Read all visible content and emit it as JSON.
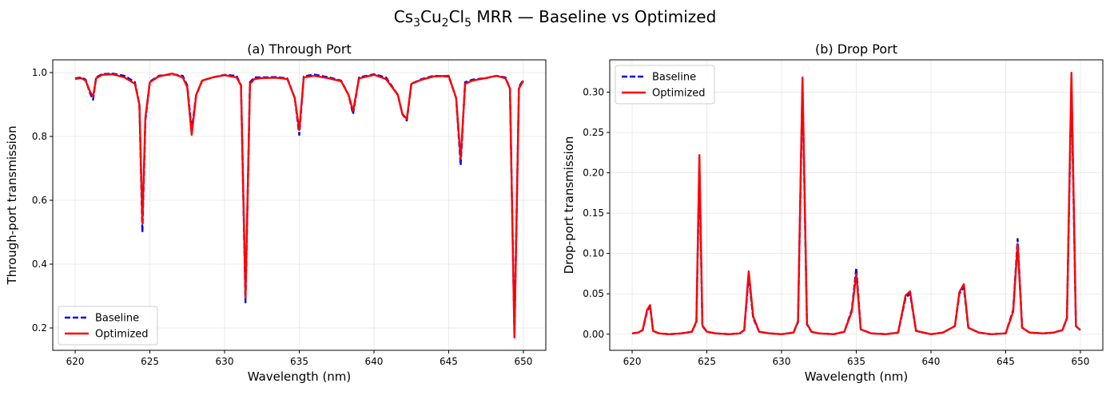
{
  "figure": {
    "title_prefix": "Cs",
    "title_sub1": "3",
    "title_mid1": "Cu",
    "title_sub2": "2",
    "title_mid2": "Cl",
    "title_sub3": "5",
    "title_suffix": " MRR — Baseline vs Optimized"
  },
  "colors": {
    "baseline": "#0000ee",
    "optimized": "#ff0000",
    "grid": "#e6e6e6"
  },
  "chart_data": [
    {
      "type": "line",
      "title": "(a) Through Port",
      "xlabel": "Wavelength (nm)",
      "ylabel": "Through-port transmission",
      "xlim": [
        618.5,
        651.5
      ],
      "ylim": [
        0.13,
        1.04
      ],
      "xticks": [
        620,
        625,
        630,
        635,
        640,
        645,
        650
      ],
      "xtick_labels": [
        "620",
        "625",
        "630",
        "635",
        "640",
        "645",
        "650"
      ],
      "yticks": [
        0.2,
        0.4,
        0.6,
        0.8,
        1.0
      ],
      "ytick_labels": [
        "0.2",
        "0.4",
        "0.6",
        "0.8",
        "1.0"
      ],
      "legend": {
        "position": "lower-left",
        "entries": [
          "Baseline",
          "Optimized"
        ]
      },
      "series": [
        {
          "name": "Baseline",
          "style": "dashed",
          "x": [
            620.0,
            620.4,
            620.7,
            621.0,
            621.2,
            621.4,
            621.8,
            622.5,
            623.3,
            624.0,
            624.3,
            624.5,
            624.7,
            625.0,
            625.6,
            626.5,
            627.2,
            627.5,
            627.8,
            628.1,
            628.5,
            629.2,
            630.0,
            630.8,
            631.1,
            631.4,
            631.7,
            632.0,
            632.5,
            633.5,
            634.2,
            634.7,
            635.0,
            635.3,
            636.0,
            637.0,
            637.8,
            638.3,
            638.6,
            639.0,
            640.0,
            640.8,
            641.6,
            641.9,
            642.2,
            642.5,
            643.2,
            644.0,
            645.0,
            645.5,
            645.8,
            646.1,
            646.6,
            647.5,
            648.2,
            648.8,
            649.1,
            649.4,
            649.7,
            650.0
          ],
          "y": [
            0.982,
            0.985,
            0.978,
            0.935,
            0.915,
            0.985,
            0.995,
            0.997,
            0.99,
            0.97,
            0.9,
            0.5,
            0.85,
            0.972,
            0.99,
            0.995,
            0.99,
            0.96,
            0.82,
            0.93,
            0.975,
            0.985,
            0.993,
            0.99,
            0.96,
            0.28,
            0.97,
            0.985,
            0.985,
            0.986,
            0.982,
            0.92,
            0.805,
            0.988,
            0.994,
            0.985,
            0.975,
            0.93,
            0.87,
            0.985,
            0.995,
            0.985,
            0.93,
            0.87,
            0.85,
            0.965,
            0.98,
            0.99,
            0.988,
            0.92,
            0.71,
            0.97,
            0.978,
            0.983,
            0.99,
            0.985,
            0.95,
            0.18,
            0.955,
            0.978
          ]
        },
        {
          "name": "Optimized",
          "style": "solid",
          "x": [
            620.0,
            620.4,
            620.7,
            621.0,
            621.2,
            621.4,
            621.8,
            622.5,
            623.3,
            624.0,
            624.3,
            624.5,
            624.7,
            625.0,
            625.6,
            626.5,
            627.2,
            627.5,
            627.8,
            628.1,
            628.5,
            629.2,
            630.0,
            630.8,
            631.1,
            631.4,
            631.7,
            632.0,
            632.5,
            633.5,
            634.2,
            634.7,
            635.0,
            635.3,
            636.0,
            637.0,
            637.8,
            638.3,
            638.6,
            639.0,
            640.0,
            640.8,
            641.6,
            641.9,
            642.2,
            642.5,
            643.2,
            644.0,
            645.0,
            645.5,
            645.8,
            646.1,
            646.6,
            647.5,
            648.2,
            648.8,
            649.1,
            649.4,
            649.7,
            650.0
          ],
          "y": [
            0.98,
            0.983,
            0.975,
            0.94,
            0.925,
            0.982,
            0.993,
            0.995,
            0.985,
            0.965,
            0.9,
            0.53,
            0.86,
            0.97,
            0.988,
            0.997,
            0.985,
            0.955,
            0.805,
            0.93,
            0.975,
            0.985,
            0.992,
            0.985,
            0.96,
            0.295,
            0.965,
            0.98,
            0.983,
            0.984,
            0.98,
            0.92,
            0.82,
            0.985,
            0.99,
            0.982,
            0.973,
            0.93,
            0.88,
            0.982,
            0.993,
            0.98,
            0.93,
            0.87,
            0.855,
            0.965,
            0.978,
            0.988,
            0.99,
            0.92,
            0.73,
            0.965,
            0.975,
            0.983,
            0.99,
            0.982,
            0.95,
            0.17,
            0.95,
            0.975
          ]
        }
      ]
    },
    {
      "type": "line",
      "title": "(b) Drop Port",
      "xlabel": "Wavelength (nm)",
      "ylabel": "Drop-port transmission",
      "xlim": [
        618.5,
        651.5
      ],
      "ylim": [
        -0.02,
        0.34
      ],
      "xticks": [
        620,
        625,
        630,
        635,
        640,
        645,
        650
      ],
      "xtick_labels": [
        "620",
        "625",
        "630",
        "635",
        "640",
        "645",
        "650"
      ],
      "yticks": [
        0.0,
        0.05,
        0.1,
        0.15,
        0.2,
        0.25,
        0.3
      ],
      "ytick_labels": [
        "0.00",
        "0.05",
        "0.10",
        "0.15",
        "0.20",
        "0.25",
        "0.30"
      ],
      "legend": {
        "position": "upper-left",
        "entries": [
          "Baseline",
          "Optimized"
        ]
      },
      "series": [
        {
          "name": "Baseline",
          "style": "dashed",
          "x": [
            620.0,
            620.4,
            620.7,
            621.0,
            621.2,
            621.4,
            621.8,
            622.5,
            623.3,
            624.0,
            624.3,
            624.5,
            624.7,
            625.0,
            625.6,
            626.5,
            627.2,
            627.5,
            627.8,
            628.1,
            628.5,
            629.2,
            630.0,
            630.8,
            631.1,
            631.4,
            631.7,
            632.0,
            632.5,
            633.5,
            634.2,
            634.7,
            635.0,
            635.3,
            636.0,
            637.0,
            637.8,
            638.3,
            638.6,
            639.0,
            640.0,
            640.8,
            641.6,
            641.9,
            642.2,
            642.5,
            643.2,
            644.0,
            645.0,
            645.5,
            645.8,
            646.1,
            646.6,
            647.5,
            648.2,
            648.8,
            649.1,
            649.4,
            649.7,
            650.0
          ],
          "y": [
            0.001,
            0.002,
            0.005,
            0.028,
            0.035,
            0.004,
            0.001,
            0.0,
            0.001,
            0.003,
            0.015,
            0.21,
            0.01,
            0.003,
            0.001,
            0.0,
            0.001,
            0.005,
            0.072,
            0.02,
            0.003,
            0.001,
            0.0,
            0.002,
            0.015,
            0.31,
            0.012,
            0.003,
            0.001,
            0.0,
            0.003,
            0.03,
            0.082,
            0.006,
            0.001,
            0.0,
            0.002,
            0.045,
            0.05,
            0.004,
            0.0,
            0.002,
            0.01,
            0.05,
            0.058,
            0.008,
            0.002,
            0.0,
            0.001,
            0.03,
            0.118,
            0.008,
            0.002,
            0.001,
            0.002,
            0.005,
            0.02,
            0.31,
            0.01,
            0.005
          ]
        },
        {
          "name": "Optimized",
          "style": "solid",
          "x": [
            620.0,
            620.4,
            620.7,
            621.0,
            621.2,
            621.4,
            621.8,
            622.5,
            623.3,
            624.0,
            624.3,
            624.5,
            624.7,
            625.0,
            625.6,
            626.5,
            627.2,
            627.5,
            627.8,
            628.1,
            628.5,
            629.2,
            630.0,
            630.8,
            631.1,
            631.4,
            631.7,
            632.0,
            632.5,
            633.5,
            634.2,
            634.7,
            635.0,
            635.3,
            636.0,
            637.0,
            637.8,
            638.3,
            638.6,
            639.0,
            640.0,
            640.8,
            641.6,
            641.9,
            642.2,
            642.5,
            643.2,
            644.0,
            645.0,
            645.5,
            645.8,
            646.1,
            646.6,
            647.5,
            648.2,
            648.8,
            649.1,
            649.4,
            649.7,
            650.0
          ],
          "y": [
            0.001,
            0.002,
            0.005,
            0.03,
            0.036,
            0.004,
            0.001,
            0.0,
            0.001,
            0.003,
            0.016,
            0.222,
            0.011,
            0.003,
            0.001,
            0.0,
            0.001,
            0.005,
            0.078,
            0.022,
            0.003,
            0.001,
            0.0,
            0.002,
            0.016,
            0.318,
            0.013,
            0.003,
            0.001,
            0.0,
            0.003,
            0.028,
            0.075,
            0.006,
            0.001,
            0.0,
            0.002,
            0.048,
            0.053,
            0.004,
            0.0,
            0.002,
            0.01,
            0.052,
            0.062,
            0.008,
            0.002,
            0.0,
            0.001,
            0.028,
            0.112,
            0.008,
            0.002,
            0.001,
            0.002,
            0.005,
            0.02,
            0.324,
            0.01,
            0.005
          ]
        }
      ]
    }
  ]
}
